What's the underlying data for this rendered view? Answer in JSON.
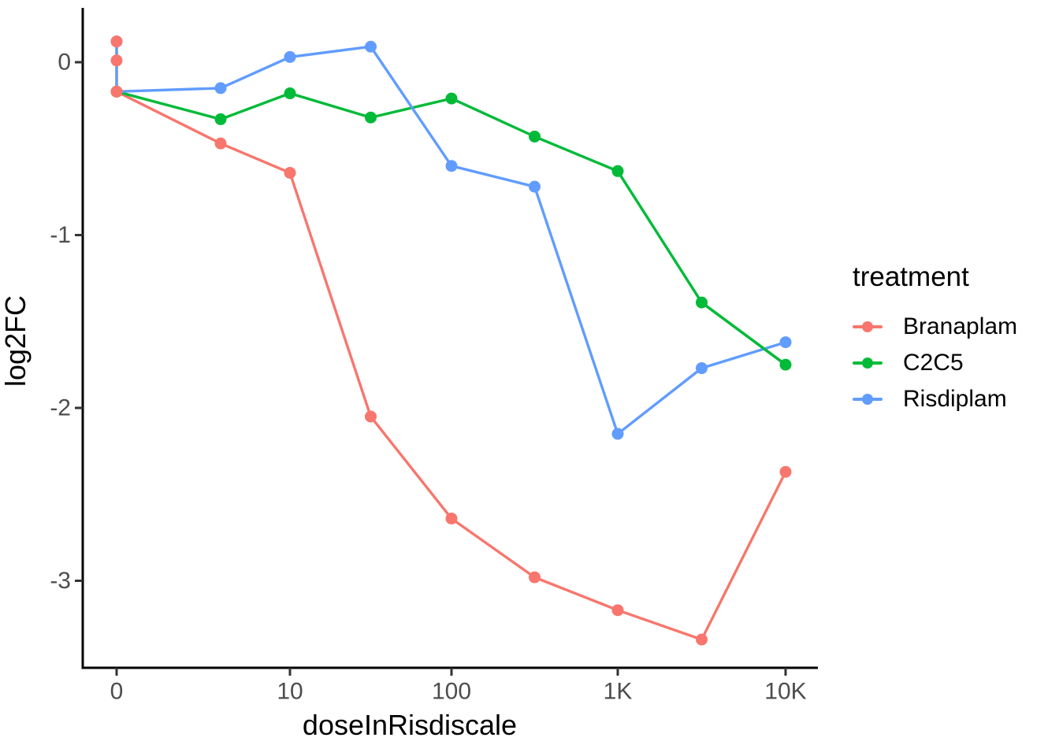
{
  "chart_data": {
    "type": "line",
    "title": "",
    "xlabel": "doseInRisdiscale",
    "ylabel": "log2FC",
    "legend_title": "treatment",
    "legend_position": "right",
    "grid": false,
    "x_scale": "log-like dose scale; u = decade position (0 tick, then 10^u)",
    "x_ticks": [
      {
        "u": 0,
        "label": "0"
      },
      {
        "u": 1,
        "label": "10"
      },
      {
        "u": 2,
        "label": "100"
      },
      {
        "u": 3,
        "label": "1K"
      },
      {
        "u": 4,
        "label": "10K"
      }
    ],
    "y_ticks": [
      {
        "v": 0,
        "label": "0"
      },
      {
        "v": -1,
        "label": "-1"
      },
      {
        "v": -2,
        "label": "-2"
      },
      {
        "v": -3,
        "label": "-3"
      }
    ],
    "ylim": [
      -3.5,
      0.31
    ],
    "series": [
      {
        "name": "Branaplam",
        "color": "#F8766D",
        "points": [
          {
            "u": 0,
            "dose": 0,
            "y": 0.12
          },
          {
            "u": 0,
            "dose": 0,
            "y": 0.01
          },
          {
            "u": 0,
            "dose": 0,
            "y": -0.17
          },
          {
            "u": 0.6,
            "dose": 3,
            "y": -0.47
          },
          {
            "u": 1,
            "dose": 10,
            "y": -0.64
          },
          {
            "u": 1.5,
            "dose": 30,
            "y": -2.05
          },
          {
            "u": 2,
            "dose": 100,
            "y": -2.64
          },
          {
            "u": 2.5,
            "dose": 300,
            "y": -2.98
          },
          {
            "u": 3,
            "dose": 1000,
            "y": -3.17
          },
          {
            "u": 3.5,
            "dose": 3000,
            "y": -3.34
          },
          {
            "u": 4,
            "dose": 10000,
            "y": -2.37
          }
        ]
      },
      {
        "name": "C2C5",
        "color": "#00BA38",
        "points": [
          {
            "u": 0,
            "dose": 0,
            "y": -0.17
          },
          {
            "u": 0.6,
            "dose": 3,
            "y": -0.33
          },
          {
            "u": 1,
            "dose": 10,
            "y": -0.18
          },
          {
            "u": 1.5,
            "dose": 30,
            "y": -0.32
          },
          {
            "u": 2,
            "dose": 100,
            "y": -0.21
          },
          {
            "u": 2.5,
            "dose": 300,
            "y": -0.43
          },
          {
            "u": 3,
            "dose": 1000,
            "y": -0.63
          },
          {
            "u": 3.5,
            "dose": 3000,
            "y": -1.39
          },
          {
            "u": 4,
            "dose": 10000,
            "y": -1.75
          }
        ]
      },
      {
        "name": "Risdiplam",
        "color": "#619CFF",
        "points": [
          {
            "u": 0,
            "dose": 0,
            "y": 0.12
          },
          {
            "u": 0,
            "dose": 0,
            "y": -0.17
          },
          {
            "u": 0.6,
            "dose": 3,
            "y": -0.15
          },
          {
            "u": 1,
            "dose": 10,
            "y": 0.03
          },
          {
            "u": 1.5,
            "dose": 30,
            "y": 0.09
          },
          {
            "u": 2,
            "dose": 100,
            "y": -0.6
          },
          {
            "u": 2.5,
            "dose": 300,
            "y": -0.72
          },
          {
            "u": 3,
            "dose": 1000,
            "y": -2.15
          },
          {
            "u": 3.5,
            "dose": 3000,
            "y": -1.77
          },
          {
            "u": 4,
            "dose": 10000,
            "y": -1.62
          }
        ]
      }
    ]
  }
}
